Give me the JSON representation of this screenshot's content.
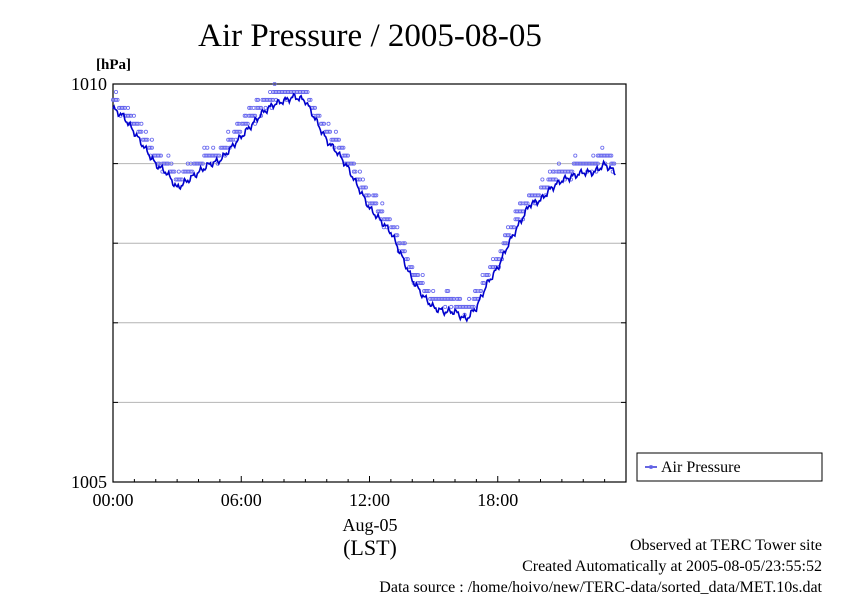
{
  "chart_data": {
    "type": "line",
    "title": "Air Pressure / 2005-08-05",
    "ylabel": "[hPa]",
    "ylim": [
      1005,
      1010
    ],
    "yticks": [
      1005,
      1006,
      1007,
      1008,
      1009,
      1010
    ],
    "y_tick_labels": [
      "1005",
      "1010"
    ],
    "xlim": [
      0,
      24
    ],
    "x_tick_labels": [
      "00:00",
      "06:00",
      "12:00",
      "18:00"
    ],
    "x_ticks": [
      0,
      6,
      12,
      18
    ],
    "x_date_label": "Aug-05",
    "x_unit_label": "(LST)",
    "grid": true,
    "legend": {
      "position": "bottom-right",
      "entries": [
        "Air Pressure"
      ]
    },
    "series": [
      {
        "name": "Air Pressure",
        "color": "#0000cc",
        "marker_color": "#6666ee",
        "x": [
          0,
          0.5,
          1.0,
          1.5,
          2.0,
          2.5,
          3.0,
          3.5,
          4.0,
          4.5,
          5.0,
          5.5,
          6.0,
          6.5,
          7.0,
          7.5,
          8.0,
          8.5,
          9.0,
          9.5,
          10.0,
          10.5,
          11.0,
          11.5,
          12.0,
          12.5,
          13.0,
          13.5,
          14.0,
          14.5,
          15.0,
          15.5,
          16.0,
          16.5,
          17.0,
          17.5,
          18.0,
          18.5,
          19.0,
          19.5,
          20.0,
          20.5,
          21.0,
          21.5,
          22.0,
          22.5,
          23.0,
          23.5
        ],
        "values": [
          1009.75,
          1009.65,
          1009.45,
          1009.25,
          1009.05,
          1008.95,
          1008.75,
          1008.85,
          1008.95,
          1009.05,
          1009.1,
          1009.25,
          1009.4,
          1009.55,
          1009.7,
          1009.8,
          1009.85,
          1009.9,
          1009.85,
          1009.6,
          1009.35,
          1009.2,
          1009.0,
          1008.75,
          1008.5,
          1008.35,
          1008.2,
          1007.9,
          1007.6,
          1007.4,
          1007.25,
          1007.2,
          1007.2,
          1007.1,
          1007.25,
          1007.55,
          1007.75,
          1008.05,
          1008.3,
          1008.55,
          1008.6,
          1008.75,
          1008.85,
          1008.9,
          1008.95,
          1008.95,
          1009.05,
          1008.95
        ]
      }
    ]
  },
  "notes": {
    "observed": "Observed at TERC Tower site",
    "created": "Created Automatically at 2005-08-05/23:55:52",
    "source": "Data source : /home/hoivo/new/TERC-data/sorted_data/MET.10s.dat"
  }
}
